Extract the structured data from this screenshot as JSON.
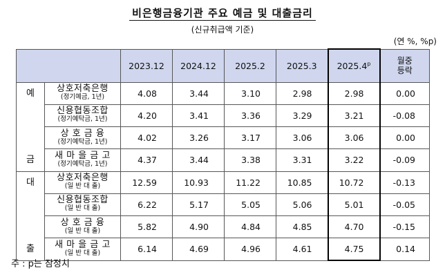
{
  "title": "비은행금융기관 주요 예금 및 대출금리",
  "subtitle": "(신규취급액 기준)",
  "unit": "(연 %, %p)",
  "columns": [
    "2023.12",
    "2024.12",
    "2025.2",
    "2025.3",
    "2025.4",
    "p"
  ],
  "change_header": [
    "월중",
    "등락"
  ],
  "groups": {
    "deposit": [
      "예",
      "금"
    ],
    "loan": [
      "대",
      "출"
    ]
  },
  "rows": [
    {
      "name": "상호저축은행",
      "sub": "(정기예금, 1년)",
      "values": [
        "4.08",
        "3.44",
        "3.10",
        "2.98",
        "2.98",
        "0.00"
      ]
    },
    {
      "name": "신용협동조합",
      "sub": "(정기예탁금, 1년)",
      "values": [
        "4.20",
        "3.41",
        "3.36",
        "3.29",
        "3.21",
        "-0.08"
      ]
    },
    {
      "name": "상 호 금 융",
      "sub": "(정기예탁금, 1년)",
      "values": [
        "4.02",
        "3.26",
        "3.17",
        "3.06",
        "3.06",
        "0.00"
      ]
    },
    {
      "name": "새 마 을 금 고",
      "sub": "(정기예탁금, 1년)",
      "values": [
        "4.37",
        "3.44",
        "3.38",
        "3.31",
        "3.22",
        "-0.09"
      ]
    },
    {
      "name": "상호저축은행",
      "sub": "(일 반 대 출)",
      "values": [
        "12.59",
        "10.93",
        "11.22",
        "10.85",
        "10.72",
        "-0.13"
      ]
    },
    {
      "name": "신용협동조합",
      "sub": "(일 반 대 출)",
      "values": [
        "6.22",
        "5.17",
        "5.05",
        "5.06",
        "5.01",
        "-0.05"
      ]
    },
    {
      "name": "상 호 금 융",
      "sub": "(일 반 대 출)",
      "values": [
        "5.82",
        "4.90",
        "4.84",
        "4.85",
        "4.70",
        "-0.15"
      ]
    },
    {
      "name": "새 마 을 금 고",
      "sub": "(일 반 대 출)",
      "values": [
        "6.14",
        "4.69",
        "4.96",
        "4.61",
        "4.75",
        "0.14"
      ]
    }
  ],
  "note": "주 : p는 잠정치"
}
